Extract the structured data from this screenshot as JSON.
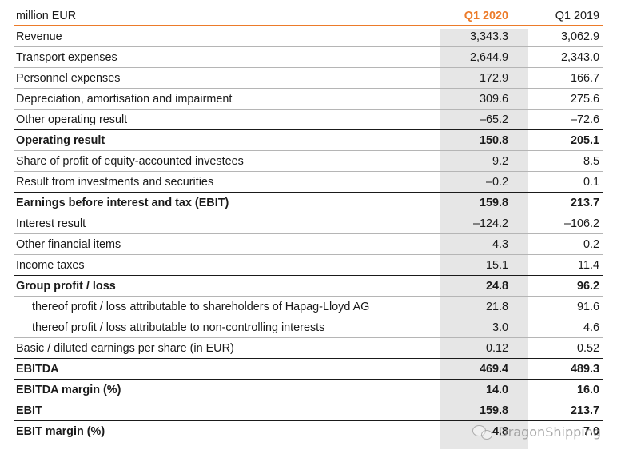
{
  "table": {
    "header": {
      "label": "million EUR",
      "col_a": "Q1 2020",
      "col_b": "Q1 2019"
    },
    "rows": [
      {
        "label": "Revenue",
        "a": "3,343.3",
        "b": "3,062.9"
      },
      {
        "label": "Transport expenses",
        "a": "2,644.9",
        "b": "2,343.0"
      },
      {
        "label": "Personnel expenses",
        "a": "172.9",
        "b": "166.7"
      },
      {
        "label": "Depreciation, amortisation and impairment",
        "a": "309.6",
        "b": "275.6"
      },
      {
        "label": "Other operating result",
        "a": "–65.2",
        "b": "–72.6"
      },
      {
        "label": "Operating result",
        "a": "150.8",
        "b": "205.1"
      },
      {
        "label": "Share of profit of equity-accounted investees",
        "a": "9.2",
        "b": "8.5"
      },
      {
        "label": "Result from investments and securities",
        "a": "–0.2",
        "b": "0.1"
      },
      {
        "label": "Earnings before interest and tax (EBIT)",
        "a": "159.8",
        "b": "213.7"
      },
      {
        "label": "Interest result",
        "a": "–124.2",
        "b": "–106.2"
      },
      {
        "label": "Other financial items",
        "a": "4.3",
        "b": "0.2"
      },
      {
        "label": "Income taxes",
        "a": "15.1",
        "b": "11.4"
      },
      {
        "label": "Group profit / loss",
        "a": "24.8",
        "b": "96.2"
      },
      {
        "label": "thereof profit / loss attributable to shareholders of Hapag-Lloyd AG",
        "a": "21.8",
        "b": "91.6"
      },
      {
        "label": "thereof profit / loss attributable to non-controlling interests",
        "a": "3.0",
        "b": "4.6"
      },
      {
        "label": "Basic / diluted earnings per share (in EUR)",
        "a": "0.12",
        "b": "0.52"
      },
      {
        "label": "EBITDA",
        "a": "469.4",
        "b": "489.3"
      },
      {
        "label": "EBITDA margin (%)",
        "a": "14.0",
        "b": "16.0"
      },
      {
        "label": "EBIT",
        "a": "159.8",
        "b": "213.7"
      },
      {
        "label": "EBIT margin (%)",
        "a": "4.8",
        "b": "7.0"
      }
    ]
  },
  "watermark": {
    "text": "DragonShipping",
    "icon": "wechat-icon"
  },
  "colors": {
    "accent": "#ec7b2a",
    "highlight_column": "#e6e6e6",
    "rule": "#b5b5b5"
  }
}
